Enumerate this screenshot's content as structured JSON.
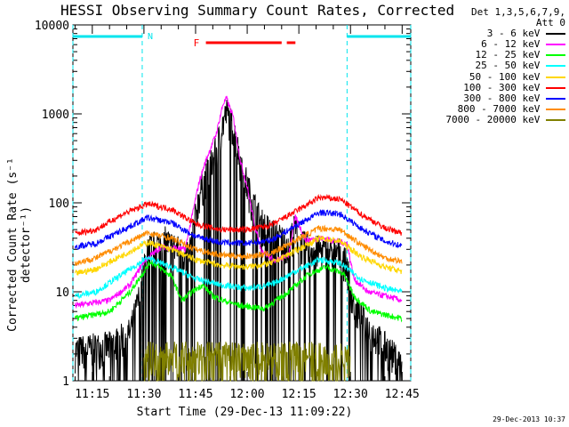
{
  "chart_data": {
    "type": "line",
    "title": "HESSI Observing Summary Count Rates, Corrected",
    "xlabel": "Start Time (29-Dec-13 11:09:22)",
    "ylabel": "Corrected Count Rate (s⁻¹ detector⁻¹)",
    "y_scale": "log",
    "ylim": [
      1,
      10000
    ],
    "xlim": [
      "11:09:22",
      "12:47:30"
    ],
    "x_ticks": [
      "11:15",
      "11:30",
      "11:45",
      "12:00",
      "12:15",
      "12:30",
      "12:45"
    ],
    "y_ticks": [
      "1",
      "10",
      "100",
      "1000",
      "10000"
    ],
    "legend_header": [
      "Det 1,3,5,6,7,9,",
      "Att 0"
    ],
    "legend_placement": "right",
    "timestamp": "29-Dec-2013 10:37",
    "annotations": {
      "night_label": "N",
      "night_intervals": [
        [
          "11:09:22",
          "11:29:30"
        ],
        [
          "12:29:00",
          "12:47:30"
        ]
      ],
      "flare_label": "F",
      "flare_intervals": [
        [
          "11:48:00",
          "12:10:00"
        ],
        [
          "12:11:30",
          "12:14:00"
        ]
      ]
    },
    "series": [
      {
        "name": "3 - 6 keV",
        "color": "#000000",
        "points": [
          [
            "11:10",
            2.2
          ],
          [
            "11:20",
            2.5
          ],
          [
            "11:26",
            3.5
          ],
          [
            "11:29",
            10
          ],
          [
            "11:31",
            30
          ],
          [
            "11:36",
            38
          ],
          [
            "11:43",
            25
          ],
          [
            "11:46",
            120
          ],
          [
            "11:48",
            200
          ],
          [
            "11:51",
            400
          ],
          [
            "11:53",
            800
          ],
          [
            "11:54",
            1050
          ],
          [
            "11:56",
            700
          ],
          [
            "11:58",
            300
          ],
          [
            "12:01",
            120
          ],
          [
            "12:04",
            60
          ],
          [
            "12:08",
            45
          ],
          [
            "12:12",
            35
          ],
          [
            "12:14",
            55
          ],
          [
            "12:15",
            35
          ],
          [
            "12:20",
            30
          ],
          [
            "12:27",
            28
          ],
          [
            "12:29",
            20
          ],
          [
            "12:31",
            7
          ],
          [
            "12:35",
            4
          ],
          [
            "12:40",
            2.5
          ],
          [
            "12:45",
            1.5
          ]
        ]
      },
      {
        "name": "6 - 12 keV",
        "color": "#ff00ff",
        "points": [
          [
            "11:10",
            7
          ],
          [
            "11:20",
            8
          ],
          [
            "11:26",
            12
          ],
          [
            "11:30",
            22
          ],
          [
            "11:35",
            32
          ],
          [
            "11:42",
            30
          ],
          [
            "11:46",
            170
          ],
          [
            "11:48",
            300
          ],
          [
            "11:51",
            600
          ],
          [
            "11:53",
            1300
          ],
          [
            "11:54",
            1500
          ],
          [
            "11:56",
            900
          ],
          [
            "11:58",
            300
          ],
          [
            "12:00",
            150
          ],
          [
            "12:02",
            60
          ],
          [
            "12:04",
            30
          ],
          [
            "12:08",
            22
          ],
          [
            "12:12",
            26
          ],
          [
            "12:14",
            70
          ],
          [
            "12:17",
            38
          ],
          [
            "12:22",
            40
          ],
          [
            "12:29",
            35
          ],
          [
            "12:31",
            14
          ],
          [
            "12:35",
            10
          ],
          [
            "12:40",
            9
          ],
          [
            "12:45",
            8
          ]
        ]
      },
      {
        "name": "12 - 25 keV",
        "color": "#00ff00",
        "points": [
          [
            "11:10",
            5
          ],
          [
            "11:20",
            6
          ],
          [
            "11:26",
            10
          ],
          [
            "11:32",
            22
          ],
          [
            "11:38",
            15
          ],
          [
            "11:41",
            8
          ],
          [
            "11:44",
            10
          ],
          [
            "11:47",
            12
          ],
          [
            "11:50",
            9
          ],
          [
            "11:53",
            8
          ],
          [
            "11:58",
            7
          ],
          [
            "12:05",
            6.5
          ],
          [
            "12:12",
            10
          ],
          [
            "12:18",
            16
          ],
          [
            "12:23",
            19
          ],
          [
            "12:28",
            16
          ],
          [
            "12:31",
            9
          ],
          [
            "12:36",
            6
          ],
          [
            "12:45",
            5
          ]
        ]
      },
      {
        "name": "25 - 50 keV",
        "color": "#00ffff",
        "points": [
          [
            "11:10",
            9
          ],
          [
            "11:16",
            10
          ],
          [
            "11:24",
            16
          ],
          [
            "11:31",
            24
          ],
          [
            "11:38",
            19
          ],
          [
            "11:45",
            14
          ],
          [
            "11:52",
            12
          ],
          [
            "12:00",
            11
          ],
          [
            "12:07",
            12
          ],
          [
            "12:14",
            17
          ],
          [
            "12:21",
            23
          ],
          [
            "12:27",
            21
          ],
          [
            "12:33",
            14
          ],
          [
            "12:40",
            11
          ],
          [
            "12:45",
            10
          ]
        ]
      },
      {
        "name": "50 - 100 keV",
        "color": "#ffd700",
        "points": [
          [
            "11:10",
            16
          ],
          [
            "11:16",
            18
          ],
          [
            "11:24",
            26
          ],
          [
            "11:31",
            36
          ],
          [
            "11:38",
            30
          ],
          [
            "11:45",
            23
          ],
          [
            "11:52",
            20
          ],
          [
            "12:00",
            19
          ],
          [
            "12:07",
            21
          ],
          [
            "12:14",
            29
          ],
          [
            "12:21",
            40
          ],
          [
            "12:27",
            37
          ],
          [
            "12:33",
            25
          ],
          [
            "12:40",
            19
          ],
          [
            "12:45",
            17
          ]
        ]
      },
      {
        "name": "100 - 300 keV",
        "color": "#ff0000",
        "points": [
          [
            "11:10",
            45
          ],
          [
            "11:16",
            50
          ],
          [
            "11:24",
            75
          ],
          [
            "11:31",
            97
          ],
          [
            "11:38",
            85
          ],
          [
            "11:45",
            58
          ],
          [
            "11:52",
            50
          ],
          [
            "12:00",
            50
          ],
          [
            "12:07",
            56
          ],
          [
            "12:14",
            80
          ],
          [
            "12:21",
            115
          ],
          [
            "12:27",
            110
          ],
          [
            "12:33",
            75
          ],
          [
            "12:40",
            52
          ],
          [
            "12:45",
            46
          ]
        ]
      },
      {
        "name": "300 - 800 keV",
        "color": "#0000ff",
        "points": [
          [
            "11:10",
            32
          ],
          [
            "11:16",
            35
          ],
          [
            "11:24",
            50
          ],
          [
            "11:31",
            68
          ],
          [
            "11:38",
            60
          ],
          [
            "11:45",
            42
          ],
          [
            "11:52",
            36
          ],
          [
            "12:00",
            35
          ],
          [
            "12:07",
            38
          ],
          [
            "12:14",
            55
          ],
          [
            "12:21",
            78
          ],
          [
            "12:27",
            75
          ],
          [
            "12:33",
            52
          ],
          [
            "12:40",
            37
          ],
          [
            "12:45",
            33
          ]
        ]
      },
      {
        "name": "800 - 7000 keV",
        "color": "#ff8c00",
        "points": [
          [
            "11:10",
            21
          ],
          [
            "11:16",
            24
          ],
          [
            "11:24",
            34
          ],
          [
            "11:31",
            46
          ],
          [
            "11:38",
            40
          ],
          [
            "11:45",
            30
          ],
          [
            "11:52",
            26
          ],
          [
            "12:00",
            25
          ],
          [
            "12:07",
            27
          ],
          [
            "12:14",
            38
          ],
          [
            "12:21",
            52
          ],
          [
            "12:27",
            50
          ],
          [
            "12:33",
            34
          ],
          [
            "12:40",
            24
          ],
          [
            "12:45",
            22
          ]
        ]
      },
      {
        "name": "7000 - 20000 keV",
        "color": "#808000",
        "points": [
          [
            "11:30",
            1.9
          ],
          [
            "11:40",
            1.9
          ],
          [
            "12:12",
            1.9
          ],
          [
            "12:30",
            1.9
          ]
        ]
      }
    ]
  }
}
